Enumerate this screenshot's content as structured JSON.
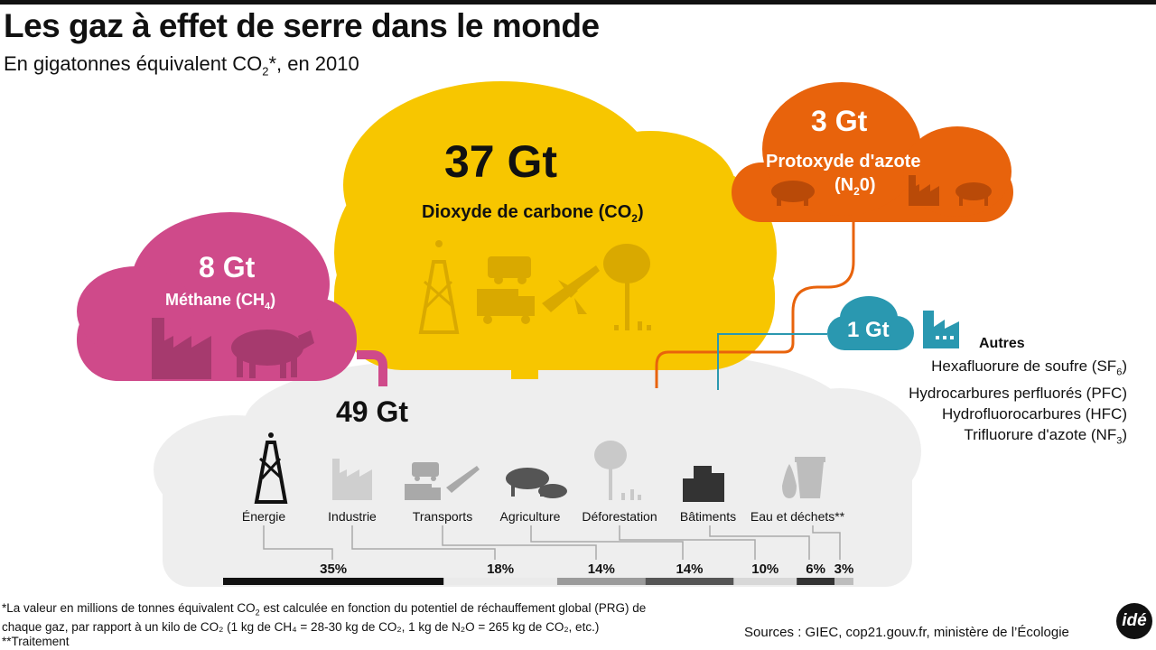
{
  "header": {
    "title": "Les gaz à effet de serre dans le monde",
    "subtitle_pre": "En gigatonnes équivalent CO",
    "subtitle_sub": "2",
    "subtitle_post": "*, en 2010"
  },
  "clouds": {
    "co2": {
      "value": "37 Gt",
      "label_pre": "Dioxyde de carbone (CO",
      "label_sub": "2",
      "label_post": ")",
      "color": "#F7C600"
    },
    "ch4": {
      "value": "8 Gt",
      "label_pre": "Méthane (CH",
      "label_sub": "4",
      "label_post": ")",
      "color": "#CF4A8A"
    },
    "n2o": {
      "value": "3 Gt",
      "label": "Protoxyde d'azote",
      "label2_pre": "(N",
      "label2_sub": "2",
      "label2_post": "0)",
      "color": "#E8630C"
    },
    "autres": {
      "value": "1 Gt",
      "title": "Autres",
      "color": "#2A98B0",
      "items": [
        {
          "pre": "Hexafluorure de soufre (SF",
          "sub": "6",
          "post": ")"
        },
        {
          "pre": "Hydrocarbures perfluorés (PFC)",
          "sub": "",
          "post": ""
        },
        {
          "pre": "Hydrofluorocarbures (HFC)",
          "sub": "",
          "post": ""
        },
        {
          "pre": "Trifluorure d'azote (NF",
          "sub": "3",
          "post": ")"
        }
      ]
    },
    "total": {
      "value": "49 Gt",
      "color": "#EEEEEE"
    }
  },
  "chart_data": {
    "type": "bar",
    "title": "Les gaz à effet de serre dans le monde",
    "categories": [
      "Énergie",
      "Industrie",
      "Transports",
      "Agriculture",
      "Déforestation",
      "Bâtiments",
      "Eau et déchets**"
    ],
    "values": [
      35,
      18,
      14,
      14,
      10,
      6,
      3
    ],
    "value_labels": [
      "35%",
      "18%",
      "14%",
      "14%",
      "10%",
      "6%",
      "3%"
    ],
    "colors": [
      "#111111",
      "#EAEAEA",
      "#9B9B9B",
      "#555555",
      "#D8D8D8",
      "#333333",
      "#BDBDBD"
    ],
    "total": 49,
    "unit": "%"
  },
  "footnote": {
    "line1_pre": "*La valeur en millions de tonnes équivalent CO",
    "line1_sub": "2",
    "line1_post": " est calculée en fonction du potentiel de réchauffement global (PRG) de",
    "line2": "chaque gaz, par rapport à un kilo de CO₂ (1 kg de CH₄ = 28-30 kg de CO₂, 1 kg de N₂O = 265 kg de CO₂, etc.)",
    "line3": "**Traitement"
  },
  "sources": "Sources : GIEC, cop21.gouv.fr, ministère de l’Écologie",
  "logo": "idé"
}
